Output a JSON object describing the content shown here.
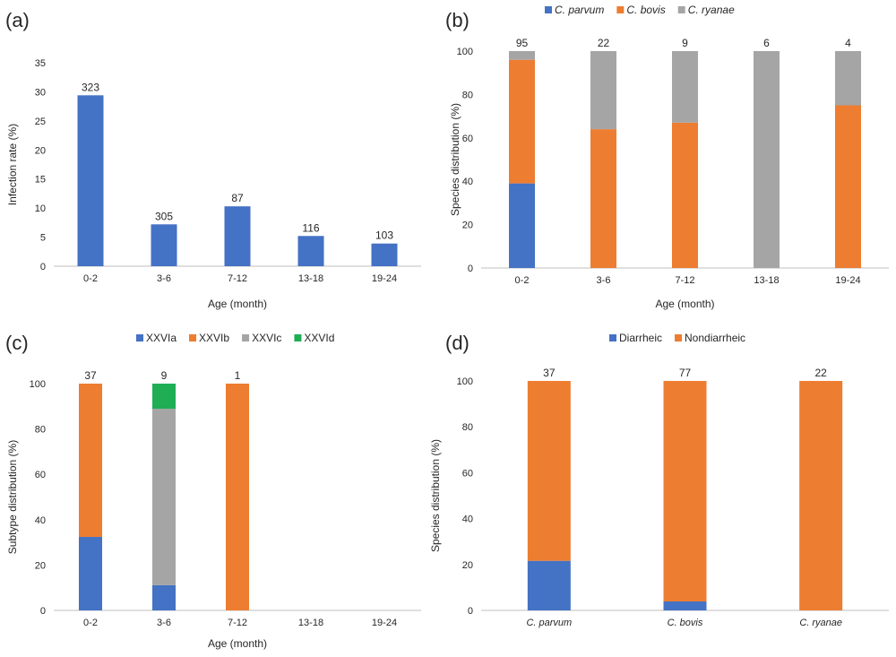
{
  "colors": {
    "blue": "#4472c4",
    "orange": "#ed7d31",
    "gray": "#a5a5a5",
    "green": "#1fae54"
  },
  "chart_data": [
    {
      "panel_label": "(a)",
      "type": "bar",
      "xlabel": "Age (month)",
      "ylabel": "Infection rate (%)",
      "ylim": [
        0,
        35
      ],
      "yticks": [
        0,
        5,
        10,
        15,
        20,
        25,
        30,
        35
      ],
      "grid": false,
      "categories": [
        "0-2",
        "3-6",
        "7-12",
        "13-18",
        "19-24"
      ],
      "series": [
        {
          "values": [
            29.4,
            7.2,
            10.3,
            5.2,
            3.9
          ],
          "color": "#4472c4"
        }
      ],
      "counts": [
        "323",
        "305",
        "87",
        "116",
        "103"
      ]
    },
    {
      "panel_label": "(b)",
      "type": "bar",
      "stacked": true,
      "xlabel": "Age (month)",
      "ylabel": "Species distribution (%)",
      "ylim": [
        0,
        100
      ],
      "yticks": [
        0,
        20,
        40,
        60,
        80,
        100
      ],
      "grid": false,
      "legend_position": "top",
      "categories": [
        "0-2",
        "3-6",
        "7-12",
        "13-18",
        "19-24"
      ],
      "series": [
        {
          "name": "C. parvum",
          "values": [
            39,
            0,
            0,
            0,
            0
          ],
          "color": "#4472c4"
        },
        {
          "name": "C. bovis",
          "values": [
            57,
            64,
            67,
            0,
            75
          ],
          "color": "#ed7d31"
        },
        {
          "name": "C. ryanae",
          "values": [
            4,
            36,
            33,
            100,
            25
          ],
          "color": "#a5a5a5"
        }
      ],
      "counts": [
        "95",
        "22",
        "9",
        "6",
        "4"
      ]
    },
    {
      "panel_label": "(c)",
      "type": "bar",
      "stacked": true,
      "xlabel": "Age (month)",
      "ylabel": "Subtype distribution (%)",
      "ylim": [
        0,
        100
      ],
      "yticks": [
        0,
        20,
        40,
        60,
        80,
        100
      ],
      "grid": false,
      "legend_position": "top",
      "categories": [
        "0-2",
        "3-6",
        "7-12",
        "13-18",
        "19-24"
      ],
      "series": [
        {
          "name": "XXVIa",
          "values": [
            32.4,
            11.1,
            0,
            0,
            0
          ],
          "color": "#4472c4"
        },
        {
          "name": "XXVIb",
          "values": [
            67.6,
            0,
            100,
            0,
            0
          ],
          "color": "#ed7d31"
        },
        {
          "name": "XXVIc",
          "values": [
            0,
            77.8,
            0,
            0,
            0
          ],
          "color": "#a5a5a5"
        },
        {
          "name": "XXVId",
          "values": [
            0,
            11.1,
            0,
            0,
            0
          ],
          "color": "#1fae54"
        }
      ],
      "counts": [
        "37",
        "9",
        "1",
        "",
        ""
      ]
    },
    {
      "panel_label": "(d)",
      "type": "bar",
      "stacked": true,
      "xlabel": "",
      "ylabel": "Species distribution (%)",
      "ylim": [
        0,
        100
      ],
      "yticks": [
        0,
        20,
        40,
        60,
        80,
        100
      ],
      "grid": false,
      "legend_position": "top",
      "categories": [
        "C. parvum",
        "C. bovis",
        "C. ryanae"
      ],
      "italic_categories": true,
      "series": [
        {
          "name": "Diarrheic",
          "values": [
            21.6,
            3.9,
            0
          ],
          "color": "#4472c4"
        },
        {
          "name": "Nondiarrheic",
          "values": [
            78.4,
            96.1,
            100
          ],
          "color": "#ed7d31"
        }
      ],
      "counts": [
        "37",
        "77",
        "22"
      ]
    }
  ]
}
